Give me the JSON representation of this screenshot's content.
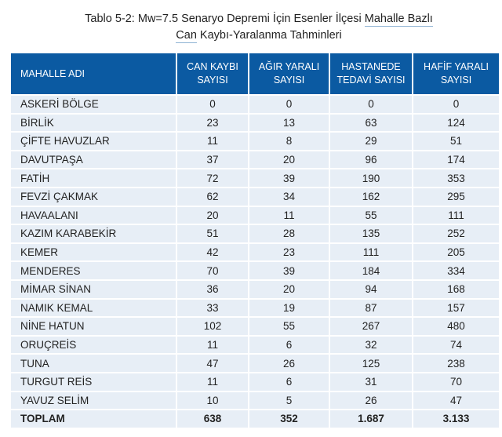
{
  "title": {
    "line1_a": "Tablo 5-2: Mw=7.5 Senaryo Depremi İçin Esenler İlçesi ",
    "line1_b": "Mahalle Bazlı",
    "line2_a": "Can",
    "line2_b": " Kaybı-Yaralanma Tahminleri"
  },
  "columns": [
    [
      "MAHALLE ADI",
      ""
    ],
    [
      "CAN KAYBI",
      "SAYISI"
    ],
    [
      "AĞIR YARALI",
      "SAYISI"
    ],
    [
      "HASTANEDE",
      "TEDAVİ SAYISI"
    ],
    [
      "HAFİF YARALI",
      "SAYISI"
    ]
  ],
  "rows": [
    [
      "ASKERİ BÖLGE",
      "0",
      "0",
      "0",
      "0"
    ],
    [
      "BİRLİK",
      "23",
      "13",
      "63",
      "124"
    ],
    [
      "ÇİFTE HAVUZLAR",
      "11",
      "8",
      "29",
      "51"
    ],
    [
      "DAVUTPAŞA",
      "37",
      "20",
      "96",
      "174"
    ],
    [
      "FATİH",
      "72",
      "39",
      "190",
      "353"
    ],
    [
      "FEVZİ ÇAKMAK",
      "62",
      "34",
      "162",
      "295"
    ],
    [
      "HAVAALANI",
      "20",
      "11",
      "55",
      "111"
    ],
    [
      "KAZIM KARABEKİR",
      "51",
      "28",
      "135",
      "252"
    ],
    [
      "KEMER",
      "42",
      "23",
      "111",
      "205"
    ],
    [
      "MENDERES",
      "70",
      "39",
      "184",
      "334"
    ],
    [
      "MİMAR SİNAN",
      "36",
      "20",
      "94",
      "168"
    ],
    [
      "NAMIK KEMAL",
      "33",
      "19",
      "87",
      "157"
    ],
    [
      "NİNE HATUN",
      "102",
      "55",
      "267",
      "480"
    ],
    [
      "ORUÇREİS",
      "11",
      "6",
      "32",
      "74"
    ],
    [
      "TUNA",
      "47",
      "26",
      "125",
      "238"
    ],
    [
      "TURGUT REİS",
      "11",
      "6",
      "31",
      "70"
    ],
    [
      "YAVUZ SELİM",
      "10",
      "5",
      "26",
      "47"
    ]
  ],
  "total": [
    "TOPLAM",
    "638",
    "352",
    "1.687",
    "3.133"
  ],
  "colors": {
    "header": "#0b5aa2",
    "row": "#e7eef6"
  }
}
